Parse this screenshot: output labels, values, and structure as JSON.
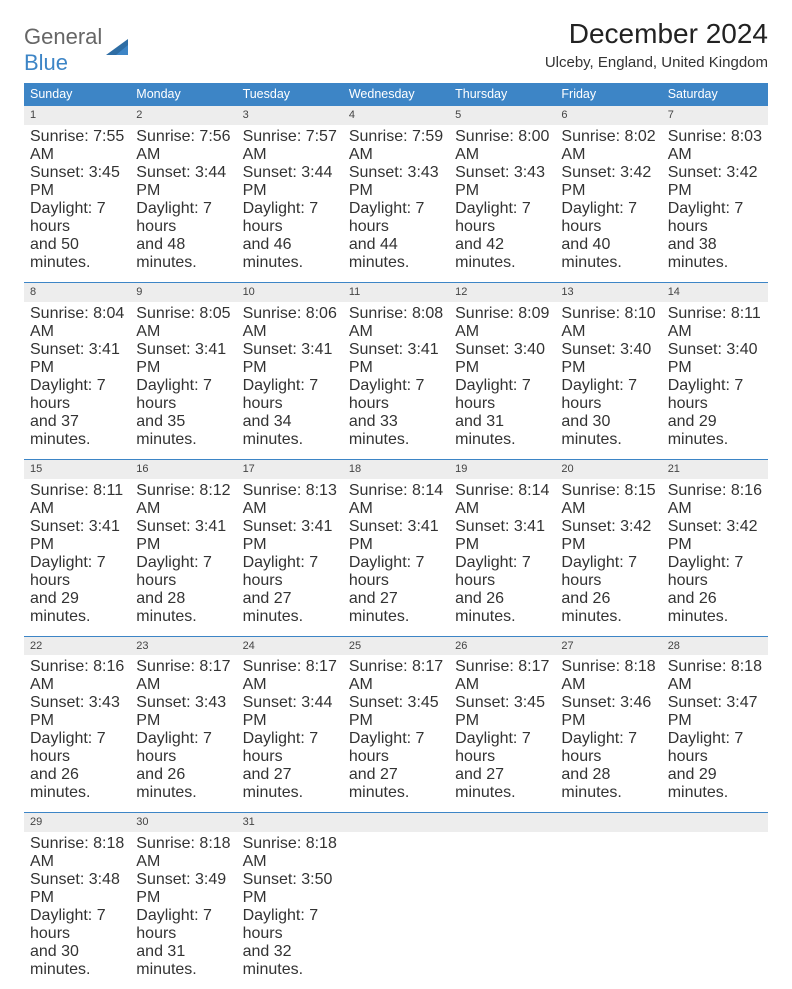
{
  "brand": {
    "part1": "General",
    "part2": "Blue"
  },
  "title": "December 2024",
  "location": "Ulceby, England, United Kingdom",
  "colors": {
    "header_bg": "#3d85c6",
    "header_text": "#ffffff",
    "daynum_bg": "#ededed",
    "rule": "#3d85c6",
    "body_text": "#333333",
    "page_bg": "#ffffff"
  },
  "day_headers": [
    "Sunday",
    "Monday",
    "Tuesday",
    "Wednesday",
    "Thursday",
    "Friday",
    "Saturday"
  ],
  "weeks": [
    [
      {
        "n": "1",
        "sr": "Sunrise: 7:55 AM",
        "ss": "Sunset: 3:45 PM",
        "d1": "Daylight: 7 hours",
        "d2": "and 50 minutes."
      },
      {
        "n": "2",
        "sr": "Sunrise: 7:56 AM",
        "ss": "Sunset: 3:44 PM",
        "d1": "Daylight: 7 hours",
        "d2": "and 48 minutes."
      },
      {
        "n": "3",
        "sr": "Sunrise: 7:57 AM",
        "ss": "Sunset: 3:44 PM",
        "d1": "Daylight: 7 hours",
        "d2": "and 46 minutes."
      },
      {
        "n": "4",
        "sr": "Sunrise: 7:59 AM",
        "ss": "Sunset: 3:43 PM",
        "d1": "Daylight: 7 hours",
        "d2": "and 44 minutes."
      },
      {
        "n": "5",
        "sr": "Sunrise: 8:00 AM",
        "ss": "Sunset: 3:43 PM",
        "d1": "Daylight: 7 hours",
        "d2": "and 42 minutes."
      },
      {
        "n": "6",
        "sr": "Sunrise: 8:02 AM",
        "ss": "Sunset: 3:42 PM",
        "d1": "Daylight: 7 hours",
        "d2": "and 40 minutes."
      },
      {
        "n": "7",
        "sr": "Sunrise: 8:03 AM",
        "ss": "Sunset: 3:42 PM",
        "d1": "Daylight: 7 hours",
        "d2": "and 38 minutes."
      }
    ],
    [
      {
        "n": "8",
        "sr": "Sunrise: 8:04 AM",
        "ss": "Sunset: 3:41 PM",
        "d1": "Daylight: 7 hours",
        "d2": "and 37 minutes."
      },
      {
        "n": "9",
        "sr": "Sunrise: 8:05 AM",
        "ss": "Sunset: 3:41 PM",
        "d1": "Daylight: 7 hours",
        "d2": "and 35 minutes."
      },
      {
        "n": "10",
        "sr": "Sunrise: 8:06 AM",
        "ss": "Sunset: 3:41 PM",
        "d1": "Daylight: 7 hours",
        "d2": "and 34 minutes."
      },
      {
        "n": "11",
        "sr": "Sunrise: 8:08 AM",
        "ss": "Sunset: 3:41 PM",
        "d1": "Daylight: 7 hours",
        "d2": "and 33 minutes."
      },
      {
        "n": "12",
        "sr": "Sunrise: 8:09 AM",
        "ss": "Sunset: 3:40 PM",
        "d1": "Daylight: 7 hours",
        "d2": "and 31 minutes."
      },
      {
        "n": "13",
        "sr": "Sunrise: 8:10 AM",
        "ss": "Sunset: 3:40 PM",
        "d1": "Daylight: 7 hours",
        "d2": "and 30 minutes."
      },
      {
        "n": "14",
        "sr": "Sunrise: 8:11 AM",
        "ss": "Sunset: 3:40 PM",
        "d1": "Daylight: 7 hours",
        "d2": "and 29 minutes."
      }
    ],
    [
      {
        "n": "15",
        "sr": "Sunrise: 8:11 AM",
        "ss": "Sunset: 3:41 PM",
        "d1": "Daylight: 7 hours",
        "d2": "and 29 minutes."
      },
      {
        "n": "16",
        "sr": "Sunrise: 8:12 AM",
        "ss": "Sunset: 3:41 PM",
        "d1": "Daylight: 7 hours",
        "d2": "and 28 minutes."
      },
      {
        "n": "17",
        "sr": "Sunrise: 8:13 AM",
        "ss": "Sunset: 3:41 PM",
        "d1": "Daylight: 7 hours",
        "d2": "and 27 minutes."
      },
      {
        "n": "18",
        "sr": "Sunrise: 8:14 AM",
        "ss": "Sunset: 3:41 PM",
        "d1": "Daylight: 7 hours",
        "d2": "and 27 minutes."
      },
      {
        "n": "19",
        "sr": "Sunrise: 8:14 AM",
        "ss": "Sunset: 3:41 PM",
        "d1": "Daylight: 7 hours",
        "d2": "and 26 minutes."
      },
      {
        "n": "20",
        "sr": "Sunrise: 8:15 AM",
        "ss": "Sunset: 3:42 PM",
        "d1": "Daylight: 7 hours",
        "d2": "and 26 minutes."
      },
      {
        "n": "21",
        "sr": "Sunrise: 8:16 AM",
        "ss": "Sunset: 3:42 PM",
        "d1": "Daylight: 7 hours",
        "d2": "and 26 minutes."
      }
    ],
    [
      {
        "n": "22",
        "sr": "Sunrise: 8:16 AM",
        "ss": "Sunset: 3:43 PM",
        "d1": "Daylight: 7 hours",
        "d2": "and 26 minutes."
      },
      {
        "n": "23",
        "sr": "Sunrise: 8:17 AM",
        "ss": "Sunset: 3:43 PM",
        "d1": "Daylight: 7 hours",
        "d2": "and 26 minutes."
      },
      {
        "n": "24",
        "sr": "Sunrise: 8:17 AM",
        "ss": "Sunset: 3:44 PM",
        "d1": "Daylight: 7 hours",
        "d2": "and 27 minutes."
      },
      {
        "n": "25",
        "sr": "Sunrise: 8:17 AM",
        "ss": "Sunset: 3:45 PM",
        "d1": "Daylight: 7 hours",
        "d2": "and 27 minutes."
      },
      {
        "n": "26",
        "sr": "Sunrise: 8:17 AM",
        "ss": "Sunset: 3:45 PM",
        "d1": "Daylight: 7 hours",
        "d2": "and 27 minutes."
      },
      {
        "n": "27",
        "sr": "Sunrise: 8:18 AM",
        "ss": "Sunset: 3:46 PM",
        "d1": "Daylight: 7 hours",
        "d2": "and 28 minutes."
      },
      {
        "n": "28",
        "sr": "Sunrise: 8:18 AM",
        "ss": "Sunset: 3:47 PM",
        "d1": "Daylight: 7 hours",
        "d2": "and 29 minutes."
      }
    ],
    [
      {
        "n": "29",
        "sr": "Sunrise: 8:18 AM",
        "ss": "Sunset: 3:48 PM",
        "d1": "Daylight: 7 hours",
        "d2": "and 30 minutes."
      },
      {
        "n": "30",
        "sr": "Sunrise: 8:18 AM",
        "ss": "Sunset: 3:49 PM",
        "d1": "Daylight: 7 hours",
        "d2": "and 31 minutes."
      },
      {
        "n": "31",
        "sr": "Sunrise: 8:18 AM",
        "ss": "Sunset: 3:50 PM",
        "d1": "Daylight: 7 hours",
        "d2": "and 32 minutes."
      },
      null,
      null,
      null,
      null
    ]
  ]
}
